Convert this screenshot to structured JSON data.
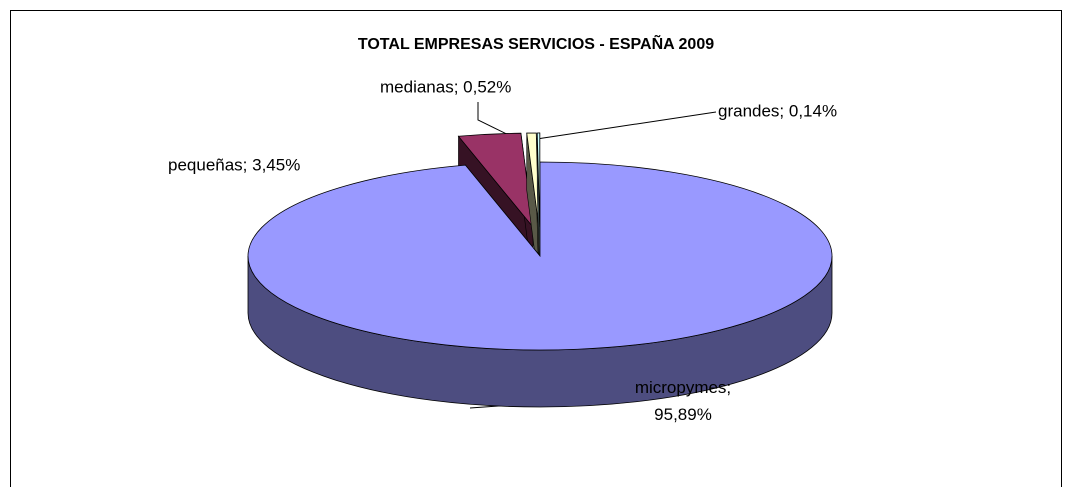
{
  "chart_data": {
    "type": "pie3d",
    "title": "TOTAL EMPRESAS SERVICIOS - ESPAÑA 2009",
    "values": [
      95.89,
      3.45,
      0.52,
      0.14
    ],
    "value_labels": [
      "micropymes; 95,89%",
      "pequeñas; 3,45%",
      "medianas; 0,52%",
      "grandes; 0,14%"
    ],
    "colors": [
      "#9999ff",
      "#993366",
      "#ffffcc",
      "#ccffff"
    ],
    "exploded": [
      false,
      true,
      true,
      true
    ]
  }
}
